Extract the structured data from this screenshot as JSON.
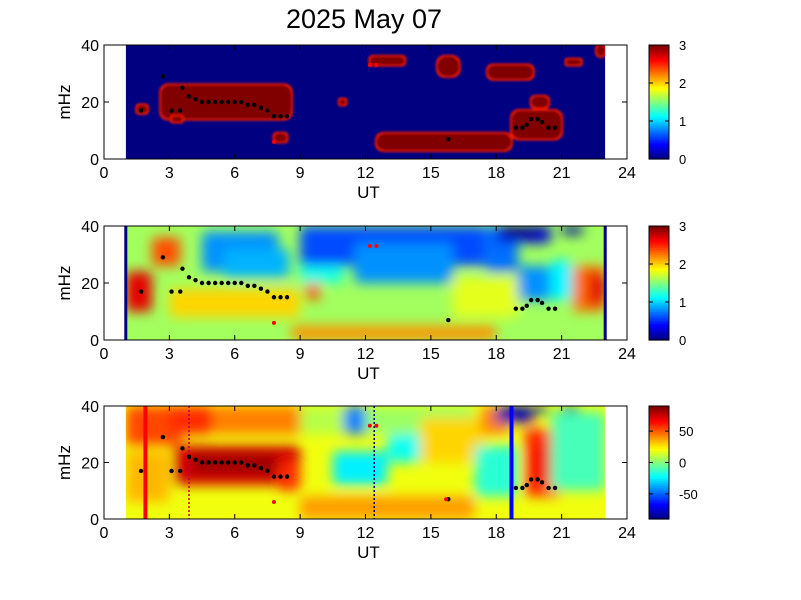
{
  "title": "2025 May 07",
  "chart_data": [
    {
      "type": "heatmap",
      "id": "panel-1",
      "xlabel": "UT",
      "ylabel": "mHz",
      "xlim": [
        0,
        24
      ],
      "ylim": [
        0,
        40
      ],
      "xticks": [
        0,
        3,
        6,
        9,
        12,
        15,
        18,
        21,
        24
      ],
      "yticks": [
        0,
        20,
        40
      ],
      "data_range_ut": [
        1,
        23
      ],
      "colorbar": {
        "min": 0,
        "max": 3,
        "ticks": [
          0,
          1,
          2,
          3
        ],
        "tick_labels": [
          "0",
          "1",
          "2",
          "3"
        ]
      },
      "background_level": 0,
      "regions": [
        {
          "ut": [
            2.6,
            8.6
          ],
          "freq": [
            14,
            26
          ],
          "level": 3
        },
        {
          "ut": [
            1.5,
            2.0
          ],
          "freq": [
            16,
            19
          ],
          "level": 3
        },
        {
          "ut": [
            3.1,
            3.6
          ],
          "freq": [
            13,
            15
          ],
          "level": 3
        },
        {
          "ut": [
            7.8,
            8.4
          ],
          "freq": [
            6,
            9
          ],
          "level": 3
        },
        {
          "ut": [
            10.8,
            11.1
          ],
          "freq": [
            19,
            21
          ],
          "level": 3
        },
        {
          "ut": [
            12.2,
            13.8
          ],
          "freq": [
            33,
            36
          ],
          "level": 3
        },
        {
          "ut": [
            15.3,
            16.3
          ],
          "freq": [
            29,
            36
          ],
          "level": 3
        },
        {
          "ut": [
            17.6,
            19.7
          ],
          "freq": [
            28,
            33
          ],
          "level": 3
        },
        {
          "ut": [
            12.5,
            18.7
          ],
          "freq": [
            3,
            9
          ],
          "level": 3
        },
        {
          "ut": [
            18.7,
            21.0
          ],
          "freq": [
            7,
            17
          ],
          "level": 3
        },
        {
          "ut": [
            19.6,
            20.4
          ],
          "freq": [
            18,
            22
          ],
          "level": 3
        },
        {
          "ut": [
            21.2,
            21.9
          ],
          "freq": [
            33,
            35
          ],
          "level": 3
        },
        {
          "ut": [
            22.6,
            23.0
          ],
          "freq": [
            36,
            40
          ],
          "level": 3
        }
      ],
      "markers": {
        "black": [
          [
            1.7,
            17
          ],
          [
            2.7,
            29
          ],
          [
            3.1,
            17
          ],
          [
            3.5,
            17
          ],
          [
            3.6,
            25
          ],
          [
            3.9,
            22
          ],
          [
            4.2,
            21
          ],
          [
            4.5,
            20
          ],
          [
            4.8,
            20
          ],
          [
            5.1,
            20
          ],
          [
            5.4,
            20
          ],
          [
            5.7,
            20
          ],
          [
            6.0,
            20
          ],
          [
            6.3,
            20
          ],
          [
            6.6,
            19
          ],
          [
            6.9,
            19
          ],
          [
            7.2,
            18
          ],
          [
            7.5,
            17
          ],
          [
            7.8,
            15
          ],
          [
            8.1,
            15
          ],
          [
            8.4,
            15
          ],
          [
            15.8,
            7
          ],
          [
            18.9,
            11
          ],
          [
            19.2,
            11
          ],
          [
            19.4,
            12
          ],
          [
            19.6,
            14
          ],
          [
            19.9,
            14
          ],
          [
            20.1,
            13
          ],
          [
            20.4,
            11
          ],
          [
            20.7,
            11
          ]
        ],
        "red": [
          [
            7.8,
            6
          ],
          [
            12.2,
            33
          ],
          [
            12.5,
            33
          ]
        ]
      }
    },
    {
      "type": "heatmap",
      "id": "panel-2",
      "xlabel": "UT",
      "ylabel": "mHz",
      "xlim": [
        0,
        24
      ],
      "ylim": [
        0,
        40
      ],
      "xticks": [
        0,
        3,
        6,
        9,
        12,
        15,
        18,
        21,
        24
      ],
      "yticks": [
        0,
        20,
        40
      ],
      "data_range_ut": [
        1,
        23
      ],
      "colorbar": {
        "min": 0,
        "max": 3,
        "ticks": [
          0,
          1,
          2,
          3
        ],
        "tick_labels": [
          "0",
          "1",
          "2",
          "3"
        ]
      },
      "background_level": 1.6,
      "regions": [
        {
          "ut": [
            1.0,
            2.2
          ],
          "freq": [
            10,
            24
          ],
          "level": 2.7
        },
        {
          "ut": [
            2.2,
            3.5
          ],
          "freq": [
            26,
            36
          ],
          "level": 2.4
        },
        {
          "ut": [
            3.0,
            9.0
          ],
          "freq": [
            8,
            18
          ],
          "level": 2.0
        },
        {
          "ut": [
            4.5,
            8.0
          ],
          "freq": [
            24,
            38
          ],
          "level": 0.8
        },
        {
          "ut": [
            5.5,
            8.5
          ],
          "freq": [
            22,
            32
          ],
          "level": 0.9
        },
        {
          "ut": [
            9.0,
            11.0
          ],
          "freq": [
            20,
            36
          ],
          "level": 1.2
        },
        {
          "ut": [
            9.3,
            9.9
          ],
          "freq": [
            14,
            20
          ],
          "level": 2.4
        },
        {
          "ut": [
            8.6,
            18.0
          ],
          "freq": [
            0,
            5
          ],
          "level": 2.2
        },
        {
          "ut": [
            9.0,
            17.5
          ],
          "freq": [
            26,
            40
          ],
          "level": 0.6
        },
        {
          "ut": [
            11.5,
            16.0
          ],
          "freq": [
            20,
            34
          ],
          "level": 0.8
        },
        {
          "ut": [
            17.5,
            19.0
          ],
          "freq": [
            24,
            40
          ],
          "level": 0.7
        },
        {
          "ut": [
            18.0,
            20.5
          ],
          "freq": [
            34,
            40
          ],
          "level": 0.3
        },
        {
          "ut": [
            18.3,
            19.8
          ],
          "freq": [
            36,
            40
          ],
          "level": 0.0
        },
        {
          "ut": [
            19.8,
            20.4
          ],
          "freq": [
            37,
            40
          ],
          "level": 0.1
        },
        {
          "ut": [
            21.0,
            22.0
          ],
          "freq": [
            37,
            40
          ],
          "level": 0.1
        },
        {
          "ut": [
            19.0,
            20.5
          ],
          "freq": [
            14,
            26
          ],
          "level": 0.8
        },
        {
          "ut": [
            20.5,
            21.5
          ],
          "freq": [
            14,
            28
          ],
          "level": 1.1
        },
        {
          "ut": [
            21.5,
            23.0
          ],
          "freq": [
            10,
            26
          ],
          "level": 2.3
        },
        {
          "ut": [
            22.2,
            23.0
          ],
          "freq": [
            12,
            24
          ],
          "level": 2.7
        },
        {
          "ut": [
            16.0,
            19.0
          ],
          "freq": [
            8,
            22
          ],
          "level": 1.8
        }
      ],
      "edge_bars_ut": [
        1.0,
        23.0
      ],
      "markers": {
        "black": [
          [
            1.7,
            17
          ],
          [
            2.7,
            29
          ],
          [
            3.1,
            17
          ],
          [
            3.5,
            17
          ],
          [
            3.6,
            25
          ],
          [
            3.9,
            22
          ],
          [
            4.2,
            21
          ],
          [
            4.5,
            20
          ],
          [
            4.8,
            20
          ],
          [
            5.1,
            20
          ],
          [
            5.4,
            20
          ],
          [
            5.7,
            20
          ],
          [
            6.0,
            20
          ],
          [
            6.3,
            20
          ],
          [
            6.6,
            19
          ],
          [
            6.9,
            19
          ],
          [
            7.2,
            18
          ],
          [
            7.5,
            17
          ],
          [
            7.8,
            15
          ],
          [
            8.1,
            15
          ],
          [
            8.4,
            15
          ],
          [
            15.8,
            7
          ],
          [
            18.9,
            11
          ],
          [
            19.2,
            11
          ],
          [
            19.4,
            12
          ],
          [
            19.6,
            14
          ],
          [
            19.9,
            14
          ],
          [
            20.1,
            13
          ],
          [
            20.4,
            11
          ],
          [
            20.7,
            11
          ]
        ],
        "red": [
          [
            7.8,
            6
          ],
          [
            12.2,
            33
          ],
          [
            12.5,
            33
          ]
        ]
      }
    },
    {
      "type": "heatmap",
      "id": "panel-3",
      "xlabel": "UT",
      "ylabel": "mHz",
      "xlim": [
        0,
        24
      ],
      "ylim": [
        0,
        40
      ],
      "xticks": [
        0,
        3,
        6,
        9,
        12,
        15,
        18,
        21,
        24
      ],
      "yticks": [
        0,
        20,
        40
      ],
      "data_range_ut": [
        1,
        23
      ],
      "colorbar": {
        "min": -90,
        "max": 90,
        "ticks": [
          50,
          0,
          -50
        ],
        "tick_labels": [
          "50",
          "0",
          "-50"
        ]
      },
      "background_level": 20,
      "regions": [
        {
          "ut": [
            1.0,
            3.6
          ],
          "freq": [
            26,
            40
          ],
          "level": 55
        },
        {
          "ut": [
            3.0,
            5.0
          ],
          "freq": [
            30,
            40
          ],
          "level": 60
        },
        {
          "ut": [
            5.0,
            9.5
          ],
          "freq": [
            30,
            40
          ],
          "level": 45
        },
        {
          "ut": [
            3.2,
            9.0
          ],
          "freq": [
            12,
            26
          ],
          "level": 75
        },
        {
          "ut": [
            4.0,
            8.0
          ],
          "freq": [
            16,
            23
          ],
          "level": 85
        },
        {
          "ut": [
            8.0,
            9.0
          ],
          "freq": [
            10,
            20
          ],
          "level": 60
        },
        {
          "ut": [
            9.0,
            12.0
          ],
          "freq": [
            30,
            40
          ],
          "level": 10
        },
        {
          "ut": [
            10.5,
            13.0
          ],
          "freq": [
            12,
            24
          ],
          "level": -25
        },
        {
          "ut": [
            11.0,
            13.0
          ],
          "freq": [
            30,
            40
          ],
          "level": -45
        },
        {
          "ut": [
            13.0,
            15.0
          ],
          "freq": [
            20,
            30
          ],
          "level": -20
        },
        {
          "ut": [
            12.0,
            17.0
          ],
          "freq": [
            30,
            40
          ],
          "level": 5
        },
        {
          "ut": [
            14.5,
            17.5
          ],
          "freq": [
            20,
            36
          ],
          "level": 30
        },
        {
          "ut": [
            9.0,
            17.0
          ],
          "freq": [
            0,
            8
          ],
          "level": 40
        },
        {
          "ut": [
            17.3,
            18.6
          ],
          "freq": [
            30,
            40
          ],
          "level": 45
        },
        {
          "ut": [
            18.0,
            19.7
          ],
          "freq": [
            34,
            40
          ],
          "level": -80
        },
        {
          "ut": [
            19.8,
            20.4
          ],
          "freq": [
            37,
            40
          ],
          "level": -80
        },
        {
          "ut": [
            21.0,
            21.8
          ],
          "freq": [
            36,
            40
          ],
          "level": -80
        },
        {
          "ut": [
            19.3,
            21.0
          ],
          "freq": [
            8,
            32
          ],
          "level": 60
        },
        {
          "ut": [
            19.8,
            20.8
          ],
          "freq": [
            14,
            26
          ],
          "level": 70
        },
        {
          "ut": [
            20.5,
            23.0
          ],
          "freq": [
            10,
            38
          ],
          "level": -10
        },
        {
          "ut": [
            17.0,
            19.0
          ],
          "freq": [
            8,
            26
          ],
          "level": -15
        },
        {
          "ut": [
            1.0,
            3.0
          ],
          "freq": [
            6,
            24
          ],
          "level": 35
        }
      ],
      "vertical_lines": [
        {
          "ut": 1.9,
          "color": "#ff0000",
          "style": "solid"
        },
        {
          "ut": 3.9,
          "color": "#c00040",
          "style": "dotted"
        },
        {
          "ut": 12.4,
          "color": "#000080",
          "style": "dotted"
        },
        {
          "ut": 18.7,
          "color": "#0000ff",
          "style": "solid"
        }
      ],
      "markers": {
        "black": [
          [
            1.7,
            17
          ],
          [
            2.7,
            29
          ],
          [
            3.1,
            17
          ],
          [
            3.5,
            17
          ],
          [
            3.6,
            25
          ],
          [
            3.9,
            22
          ],
          [
            4.2,
            21
          ],
          [
            4.5,
            20
          ],
          [
            4.8,
            20
          ],
          [
            5.1,
            20
          ],
          [
            5.4,
            20
          ],
          [
            5.7,
            20
          ],
          [
            6.0,
            20
          ],
          [
            6.3,
            20
          ],
          [
            6.6,
            19
          ],
          [
            6.9,
            19
          ],
          [
            7.2,
            18
          ],
          [
            7.5,
            17
          ],
          [
            7.8,
            15
          ],
          [
            8.1,
            15
          ],
          [
            8.4,
            15
          ],
          [
            15.8,
            7
          ],
          [
            18.9,
            11
          ],
          [
            19.2,
            11
          ],
          [
            19.4,
            12
          ],
          [
            19.6,
            14
          ],
          [
            19.9,
            14
          ],
          [
            20.1,
            13
          ],
          [
            20.4,
            11
          ],
          [
            20.7,
            11
          ]
        ],
        "red": [
          [
            7.8,
            6
          ],
          [
            12.2,
            33
          ],
          [
            12.5,
            33
          ],
          [
            15.7,
            7
          ]
        ]
      }
    }
  ]
}
